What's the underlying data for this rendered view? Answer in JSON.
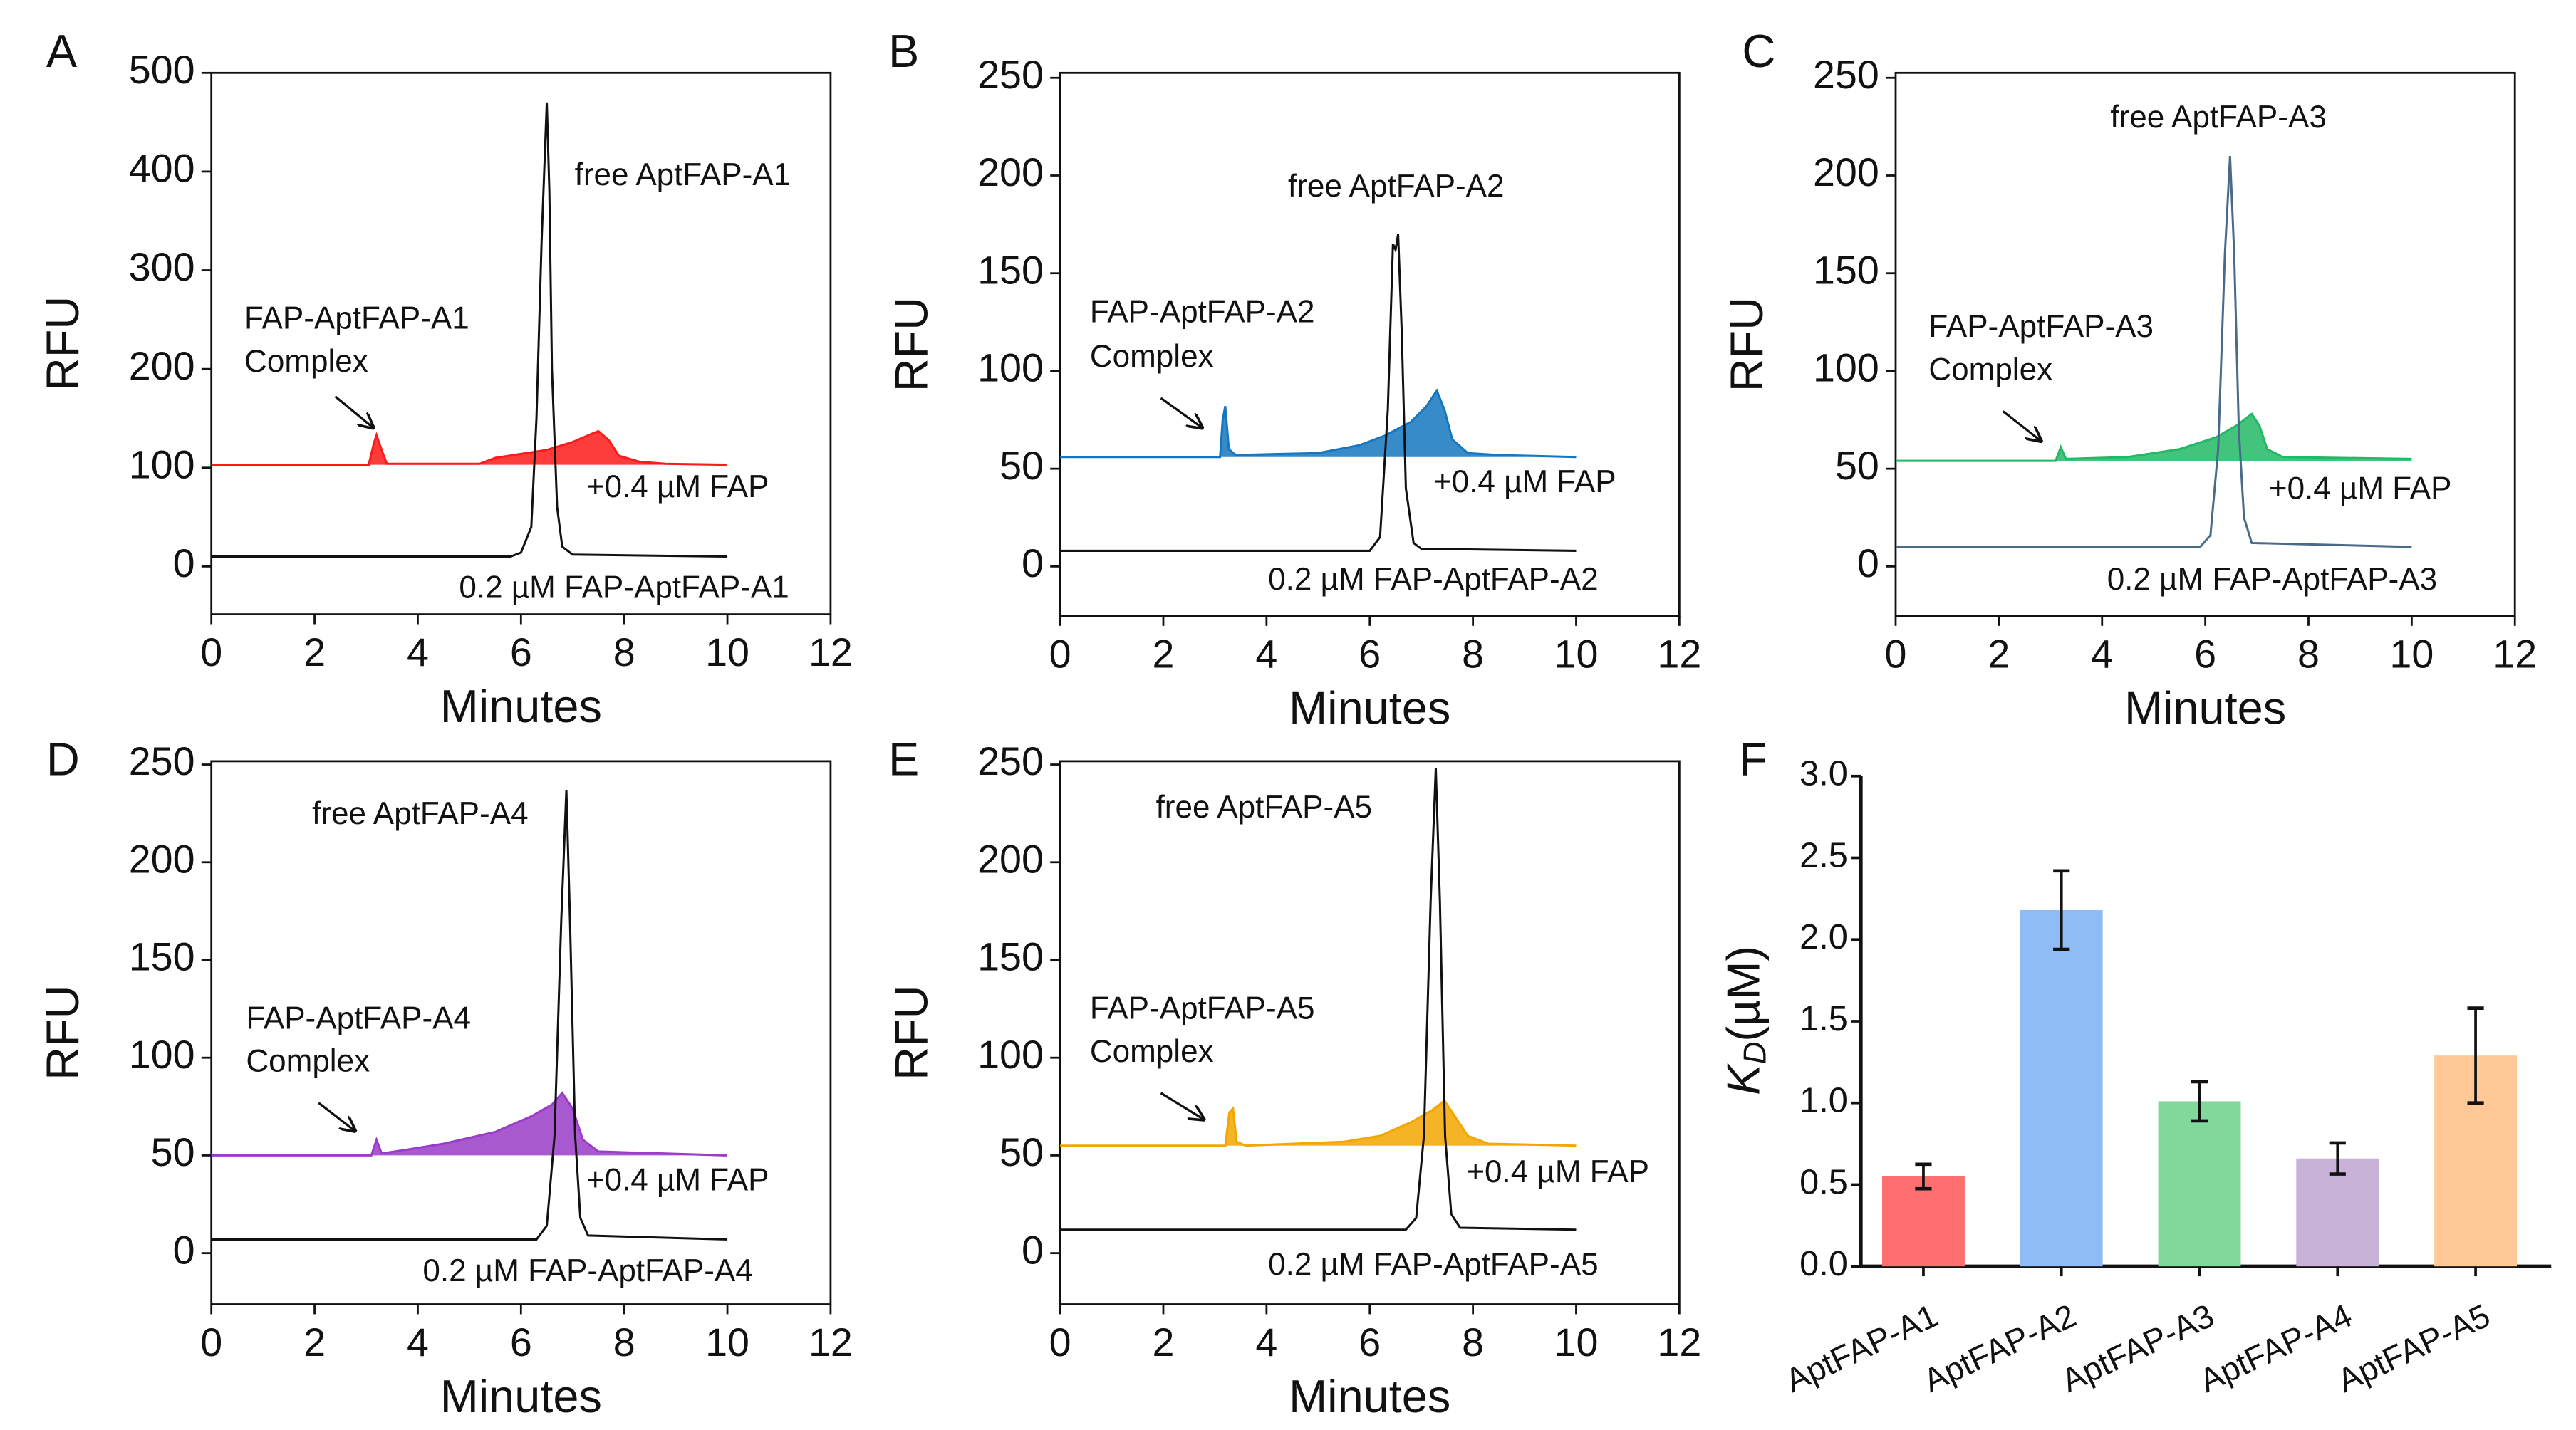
{
  "chart_data": [
    {
      "panel": "A",
      "type": "line",
      "xlabel": "Minutes",
      "ylabel": "RFU",
      "xlim": [
        0,
        12
      ],
      "ylim": [
        -50,
        500
      ],
      "xticks": [
        0,
        2,
        4,
        6,
        8,
        10,
        12
      ],
      "yticks": [
        0,
        100,
        200,
        300,
        400,
        500
      ],
      "series": [
        {
          "name": "0.2 µM FAP-AptFAP-A1",
          "color": "#111111",
          "fill": false,
          "points": [
            [
              0,
              10
            ],
            [
              5.8,
              10
            ],
            [
              6.0,
              14
            ],
            [
              6.2,
              40
            ],
            [
              6.3,
              150
            ],
            [
              6.4,
              330
            ],
            [
              6.5,
              470
            ],
            [
              6.55,
              380
            ],
            [
              6.6,
              200
            ],
            [
              6.7,
              60
            ],
            [
              6.8,
              20
            ],
            [
              7.0,
              12
            ],
            [
              10,
              10
            ]
          ]
        },
        {
          "name": "+0.4 µM FAP",
          "color": "#ff1a1a",
          "fill": true,
          "points": [
            [
              0,
              103
            ],
            [
              3.05,
              103
            ],
            [
              3.15,
              125
            ],
            [
              3.2,
              133
            ],
            [
              3.3,
              118
            ],
            [
              3.4,
              104
            ],
            [
              5.2,
              104
            ],
            [
              5.5,
              110
            ],
            [
              6,
              114
            ],
            [
              6.5,
              118
            ],
            [
              7,
              126
            ],
            [
              7.4,
              135
            ],
            [
              7.5,
              137
            ],
            [
              7.7,
              128
            ],
            [
              7.9,
              112
            ],
            [
              8.3,
              106
            ],
            [
              8.8,
              104
            ],
            [
              10,
              103
            ]
          ]
        }
      ],
      "annotations": {
        "free": "free AptFAP-A1",
        "complex_1": "FAP-AptFAP-A1",
        "complex_2": "Complex",
        "fap": "+0.4 µM FAP",
        "sample": "0.2 µM FAP-AptFAP-A1"
      }
    },
    {
      "panel": "B",
      "type": "line",
      "xlabel": "Minutes",
      "ylabel": "RFU",
      "xlim": [
        0,
        12
      ],
      "ylim": [
        -25,
        250
      ],
      "xticks": [
        0,
        2,
        4,
        6,
        8,
        10,
        12
      ],
      "yticks": [
        0,
        50,
        100,
        150,
        200,
        250
      ],
      "series": [
        {
          "name": "0.2 µM FAP-AptFAP-A2",
          "color": "#111111",
          "fill": false,
          "points": [
            [
              0,
              8
            ],
            [
              6.0,
              8
            ],
            [
              6.2,
              15
            ],
            [
              6.35,
              80
            ],
            [
              6.45,
              165
            ],
            [
              6.5,
              162
            ],
            [
              6.55,
              170
            ],
            [
              6.62,
              120
            ],
            [
              6.7,
              40
            ],
            [
              6.85,
              12
            ],
            [
              7,
              9
            ],
            [
              10,
              8
            ]
          ]
        },
        {
          "name": "+0.4 µM FAP",
          "color": "#1477c0",
          "fill": true,
          "points": [
            [
              0,
              56
            ],
            [
              3.1,
              56
            ],
            [
              3.15,
              75
            ],
            [
              3.2,
              82
            ],
            [
              3.27,
              60
            ],
            [
              3.4,
              57
            ],
            [
              5,
              58
            ],
            [
              5.8,
              62
            ],
            [
              6.3,
              67
            ],
            [
              6.8,
              74
            ],
            [
              7.1,
              82
            ],
            [
              7.3,
              90
            ],
            [
              7.45,
              80
            ],
            [
              7.6,
              65
            ],
            [
              7.9,
              58
            ],
            [
              8.5,
              57
            ],
            [
              10,
              56
            ]
          ]
        }
      ],
      "annotations": {
        "free": "free AptFAP-A2",
        "complex_1": "FAP-AptFAP-A2",
        "complex_2": "Complex",
        "fap": "+0.4 µM FAP",
        "sample": "0.2 µM FAP-AptFAP-A2"
      }
    },
    {
      "panel": "C",
      "type": "line",
      "xlabel": "Minutes",
      "ylabel": "RFU",
      "xlim": [
        0,
        12
      ],
      "ylim": [
        -25,
        250
      ],
      "xticks": [
        0,
        2,
        4,
        6,
        8,
        10,
        12
      ],
      "yticks": [
        0,
        50,
        100,
        150,
        200,
        250
      ],
      "series": [
        {
          "name": "0.2 µM FAP-AptFAP-A3",
          "color": "#4a6a8a",
          "fill": false,
          "points": [
            [
              0,
              10
            ],
            [
              5.9,
              10
            ],
            [
              6.1,
              16
            ],
            [
              6.25,
              60
            ],
            [
              6.38,
              160
            ],
            [
              6.48,
              210
            ],
            [
              6.56,
              160
            ],
            [
              6.65,
              70
            ],
            [
              6.75,
              25
            ],
            [
              6.9,
              12
            ],
            [
              10,
              10
            ]
          ]
        },
        {
          "name": "+0.4 µM FAP",
          "color": "#22b865",
          "fill": true,
          "points": [
            [
              0,
              54
            ],
            [
              3.1,
              54
            ],
            [
              3.2,
              61
            ],
            [
              3.3,
              55
            ],
            [
              4.5,
              56
            ],
            [
              5.5,
              60
            ],
            [
              6.2,
              66
            ],
            [
              6.6,
              72
            ],
            [
              6.9,
              78
            ],
            [
              7.05,
              72
            ],
            [
              7.2,
              60
            ],
            [
              7.5,
              56
            ],
            [
              10,
              55
            ]
          ]
        }
      ],
      "annotations": {
        "free": "free AptFAP-A3",
        "complex_1": "FAP-AptFAP-A3",
        "complex_2": "Complex",
        "fap": "+0.4 µM FAP",
        "sample": "0.2 µM FAP-AptFAP-A3"
      }
    },
    {
      "panel": "D",
      "type": "line",
      "xlabel": "Minutes",
      "ylabel": "RFU",
      "xlim": [
        0,
        12
      ],
      "ylim": [
        -25,
        250
      ],
      "xticks": [
        0,
        2,
        4,
        6,
        8,
        10,
        12
      ],
      "yticks": [
        0,
        50,
        100,
        150,
        200,
        250
      ],
      "series": [
        {
          "name": "0.2 µM FAP-AptFAP-A4",
          "color": "#111111",
          "fill": false,
          "points": [
            [
              0,
              7
            ],
            [
              6.3,
              7
            ],
            [
              6.5,
              14
            ],
            [
              6.65,
              60
            ],
            [
              6.78,
              170
            ],
            [
              6.88,
              237
            ],
            [
              6.95,
              170
            ],
            [
              7.05,
              60
            ],
            [
              7.15,
              18
            ],
            [
              7.3,
              9
            ],
            [
              10,
              7
            ]
          ]
        },
        {
          "name": "+0.4 µM FAP",
          "color": "#9a3cc8",
          "fill": true,
          "points": [
            [
              0,
              50
            ],
            [
              3.1,
              50
            ],
            [
              3.2,
              58
            ],
            [
              3.3,
              51
            ],
            [
              3.8,
              53
            ],
            [
              4.5,
              56
            ],
            [
              5.5,
              62
            ],
            [
              6.2,
              70
            ],
            [
              6.6,
              76
            ],
            [
              6.8,
              82
            ],
            [
              7,
              74
            ],
            [
              7.2,
              58
            ],
            [
              7.5,
              52
            ],
            [
              10,
              50
            ]
          ]
        }
      ],
      "annotations": {
        "free": "free AptFAP-A4",
        "complex_1": "FAP-AptFAP-A4",
        "complex_2": "Complex",
        "fap": "+0.4 µM FAP",
        "sample": "0.2 µM FAP-AptFAP-A4"
      }
    },
    {
      "panel": "E",
      "type": "line",
      "xlabel": "Minutes",
      "ylabel": "RFU",
      "xlim": [
        0,
        12
      ],
      "ylim": [
        -25,
        250
      ],
      "xticks": [
        0,
        2,
        4,
        6,
        8,
        10,
        12
      ],
      "yticks": [
        0,
        50,
        100,
        150,
        200,
        250
      ],
      "series": [
        {
          "name": "0.2 µM FAP-AptFAP-A5",
          "color": "#111111",
          "fill": false,
          "points": [
            [
              0,
              12
            ],
            [
              6.7,
              12
            ],
            [
              6.9,
              18
            ],
            [
              7.05,
              60
            ],
            [
              7.18,
              180
            ],
            [
              7.28,
              248
            ],
            [
              7.36,
              180
            ],
            [
              7.46,
              60
            ],
            [
              7.58,
              20
            ],
            [
              7.75,
              13
            ],
            [
              10,
              12
            ]
          ]
        },
        {
          "name": "+0.4 µM FAP",
          "color": "#f3a600",
          "fill": true,
          "points": [
            [
              0,
              55
            ],
            [
              3.2,
              55
            ],
            [
              3.28,
              72
            ],
            [
              3.35,
              74
            ],
            [
              3.42,
              57
            ],
            [
              3.6,
              55
            ],
            [
              5.5,
              57
            ],
            [
              6.2,
              60
            ],
            [
              6.8,
              67
            ],
            [
              7.2,
              73
            ],
            [
              7.45,
              78
            ],
            [
              7.65,
              70
            ],
            [
              7.9,
              60
            ],
            [
              8.3,
              56
            ],
            [
              10,
              55
            ]
          ]
        }
      ],
      "annotations": {
        "free": "free AptFAP-A5",
        "complex_1": "FAP-AptFAP-A5",
        "complex_2": "Complex",
        "fap": "+0.4 µM FAP",
        "sample": "0.2 µM FAP-AptFAP-A5"
      }
    },
    {
      "panel": "F",
      "type": "bar",
      "xlabel": "",
      "ylabel_main": "K",
      "ylabel_sub": "D",
      "ylabel_unit": "(µM)",
      "ylim": [
        0,
        3.0
      ],
      "yticks": [
        "0.0",
        "0.5",
        "1.0",
        "1.5",
        "2.0",
        "2.5",
        "3.0"
      ],
      "categories": [
        "AptFAP-A1",
        "AptFAP-A2",
        "AptFAP-A3",
        "AptFAP-A4",
        "AptFAP-A5"
      ],
      "values": [
        0.55,
        2.18,
        1.01,
        0.66,
        1.29
      ],
      "errors": [
        0.075,
        0.24,
        0.12,
        0.095,
        0.29
      ],
      "colors": [
        "#ff6f6f",
        "#8fbcf5",
        "#80d89a",
        "#c8b2d8",
        "#ffc896"
      ]
    }
  ]
}
